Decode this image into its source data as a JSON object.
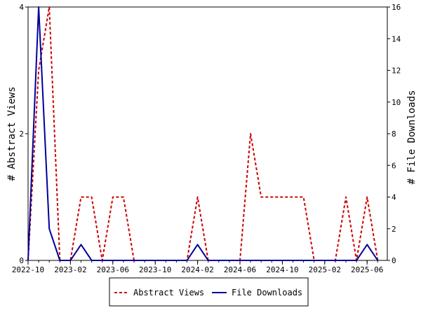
{
  "chart_data": {
    "type": "line",
    "x": [
      "2022-10",
      "2022-11",
      "2022-12",
      "2023-01",
      "2023-02",
      "2023-03",
      "2023-04",
      "2023-05",
      "2023-06",
      "2023-07",
      "2023-08",
      "2023-09",
      "2023-10",
      "2023-11",
      "2023-12",
      "2024-01",
      "2024-02",
      "2024-03",
      "2024-04",
      "2024-05",
      "2024-06",
      "2024-07",
      "2024-08",
      "2024-09",
      "2024-10",
      "2024-11",
      "2024-12",
      "2025-01",
      "2025-02",
      "2025-03",
      "2025-04",
      "2025-05",
      "2025-06",
      "2025-07"
    ],
    "x_tick_labels": [
      "2022-10",
      "2023-02",
      "2023-06",
      "2023-10",
      "2024-02",
      "2024-06",
      "2024-10",
      "2025-02",
      "2025-06"
    ],
    "series": [
      {
        "name": "Abstract Views",
        "axis": "left",
        "color": "#cc0000",
        "style": "dashed",
        "values": [
          0,
          3,
          4,
          0,
          0,
          1,
          1,
          0,
          1,
          1,
          0,
          0,
          0,
          0,
          0,
          0,
          1,
          0,
          0,
          0,
          0,
          2,
          1,
          1,
          1,
          1,
          1,
          0,
          0,
          0,
          1,
          0,
          1,
          0
        ]
      },
      {
        "name": "File Downloads",
        "axis": "right",
        "color": "#000099",
        "style": "solid",
        "values": [
          0,
          16,
          2,
          0,
          0,
          1,
          0,
          0,
          0,
          0,
          0,
          0,
          0,
          0,
          0,
          0,
          1,
          0,
          0,
          0,
          0,
          0,
          0,
          0,
          0,
          0,
          0,
          0,
          0,
          0,
          0,
          0,
          1,
          0
        ]
      }
    ],
    "ylabel_left": "# Abstract Views",
    "ylabel_right": "# File Downloads",
    "ylim_left": [
      0,
      4
    ],
    "yticks_left": [
      0,
      2,
      4
    ],
    "ylim_right": [
      0,
      16
    ],
    "yticks_right": [
      0,
      2,
      4,
      6,
      8,
      10,
      12,
      14,
      16
    ],
    "grid": false,
    "legend_position": "bottom-center"
  }
}
